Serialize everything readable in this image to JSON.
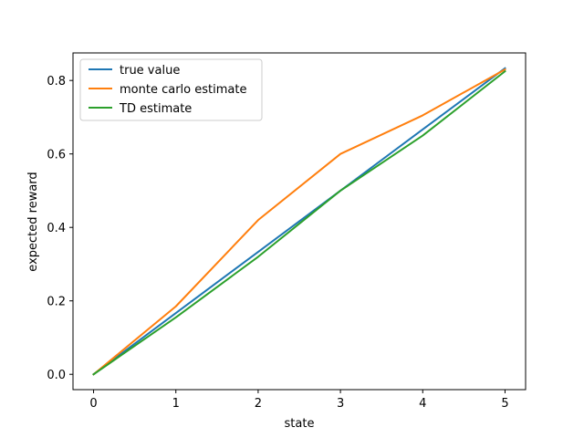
{
  "chart_data": {
    "type": "line",
    "title": "",
    "xlabel": "state",
    "ylabel": "expected reward",
    "x": [
      0,
      1,
      2,
      3,
      4,
      5
    ],
    "xlim": [
      -0.25,
      5.25
    ],
    "ylim": [
      -0.0417,
      0.875
    ],
    "xticks": [
      0,
      1,
      2,
      3,
      4,
      5
    ],
    "xtick_labels": [
      "0",
      "1",
      "2",
      "3",
      "4",
      "5"
    ],
    "yticks": [
      0.0,
      0.2,
      0.4,
      0.6,
      0.8
    ],
    "ytick_labels": [
      "0.0",
      "0.2",
      "0.4",
      "0.6",
      "0.8"
    ],
    "grid": false,
    "legend_position": "top-left",
    "series": [
      {
        "name": "true value",
        "color": "#1f77b4",
        "values": [
          0.0,
          0.1667,
          0.3333,
          0.5,
          0.6667,
          0.8333
        ]
      },
      {
        "name": "monte carlo estimate",
        "color": "#ff7f0e",
        "values": [
          0.0,
          0.185,
          0.42,
          0.6,
          0.705,
          0.83
        ]
      },
      {
        "name": "TD estimate",
        "color": "#2ca02c",
        "values": [
          0.0,
          0.155,
          0.32,
          0.5,
          0.65,
          0.825
        ]
      }
    ]
  }
}
